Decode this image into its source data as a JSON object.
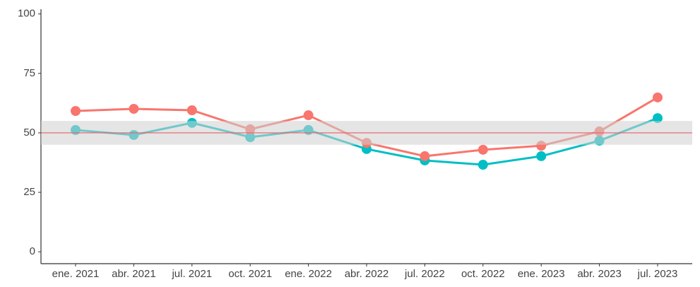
{
  "chart_data": {
    "type": "line",
    "categories": [
      "ene. 2021",
      "abr. 2021",
      "jul. 2021",
      "oct. 2021",
      "ene. 2022",
      "abr. 2022",
      "jul. 2022",
      "oct. 2022",
      "ene. 2023",
      "abr. 2023",
      "jul. 2023"
    ],
    "series": [
      {
        "color": "#f8766d",
        "values": [
          59.2,
          60.1,
          59.5,
          51.5,
          57.4,
          45.8,
          40.2,
          42.9,
          44.6,
          50.6,
          64.9
        ]
      },
      {
        "color": "#00bfc4",
        "values": [
          51.2,
          49.1,
          54.2,
          48.2,
          51.2,
          43.2,
          38.4,
          36.6,
          40.2,
          46.7,
          56.2
        ]
      }
    ],
    "ylim": [
      -5,
      102
    ],
    "yticks": [
      0,
      25,
      50,
      75,
      100
    ],
    "band": [
      45,
      55
    ],
    "band_color": "#d0d0d0",
    "reference_line": 50,
    "reference_color": "#e8616a",
    "grid": false
  }
}
